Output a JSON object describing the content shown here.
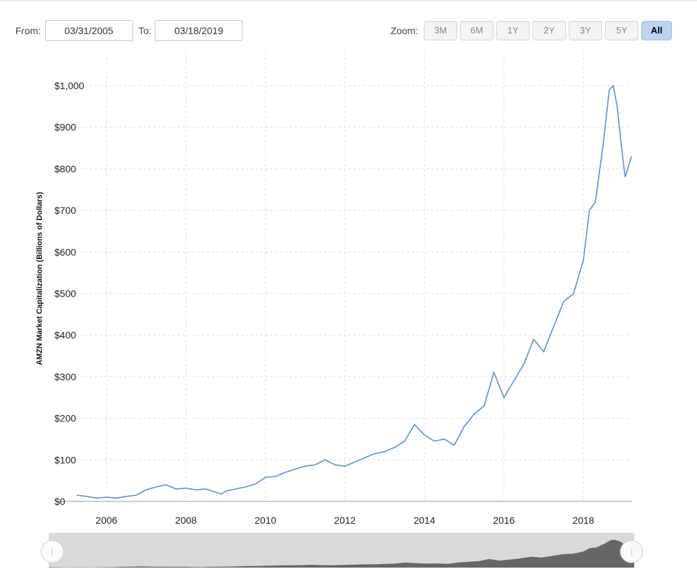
{
  "range": {
    "from_label": "From:",
    "from_value": "03/31/2005",
    "to_label": "To:",
    "to_value": "03/18/2019"
  },
  "zoom": {
    "label": "Zoom:",
    "buttons": [
      "3M",
      "6M",
      "1Y",
      "2Y",
      "3Y",
      "5Y",
      "All"
    ],
    "active": "All",
    "active_color": "#bcd3f2"
  },
  "chart_data": {
    "type": "line",
    "title": "",
    "xlabel": "",
    "ylabel": "AMZN Market Capitalization (Billions of Dollars)",
    "ylim": [
      0,
      1000
    ],
    "xlim": [
      2005.25,
      2019.21
    ],
    "yticks": [
      "$0",
      "$100",
      "$200",
      "$300",
      "$400",
      "$500",
      "$600",
      "$700",
      "$800",
      "$900",
      "$1,000"
    ],
    "xticks": [
      "2006",
      "2008",
      "2010",
      "2012",
      "2014",
      "2016",
      "2018"
    ],
    "grid": true,
    "line_color": "#5a8fd6",
    "series": [
      {
        "x": [
          2005.25,
          2005.5,
          2005.75,
          2006.0,
          2006.25,
          2006.5,
          2006.75,
          2007.0,
          2007.25,
          2007.5,
          2007.75,
          2008.0,
          2008.25,
          2008.5,
          2008.75,
          2008.9,
          2009.0,
          2009.25,
          2009.5,
          2009.75,
          2010.0,
          2010.25,
          2010.5,
          2010.75,
          2011.0,
          2011.25,
          2011.5,
          2011.75,
          2012.0,
          2012.25,
          2012.5,
          2012.75,
          2013.0,
          2013.25,
          2013.5,
          2013.75,
          2014.0,
          2014.25,
          2014.5,
          2014.75,
          2015.0,
          2015.25,
          2015.5,
          2015.75,
          2016.0,
          2016.25,
          2016.5,
          2016.75,
          2017.0,
          2017.25,
          2017.5,
          2017.75,
          2018.0,
          2018.15,
          2018.3,
          2018.5,
          2018.65,
          2018.75,
          2018.85,
          2018.95,
          2019.05,
          2019.21
        ],
        "y": [
          15,
          12,
          8,
          10,
          8,
          12,
          15,
          28,
          35,
          40,
          30,
          32,
          28,
          30,
          22,
          18,
          25,
          30,
          35,
          42,
          58,
          60,
          70,
          78,
          85,
          88,
          100,
          88,
          85,
          95,
          105,
          115,
          120,
          130,
          145,
          185,
          160,
          145,
          150,
          135,
          180,
          210,
          230,
          310,
          250,
          290,
          330,
          390,
          360,
          420,
          480,
          500,
          580,
          700,
          720,
          860,
          990,
          1000,
          950,
          860,
          780,
          830
        ]
      }
    ]
  }
}
